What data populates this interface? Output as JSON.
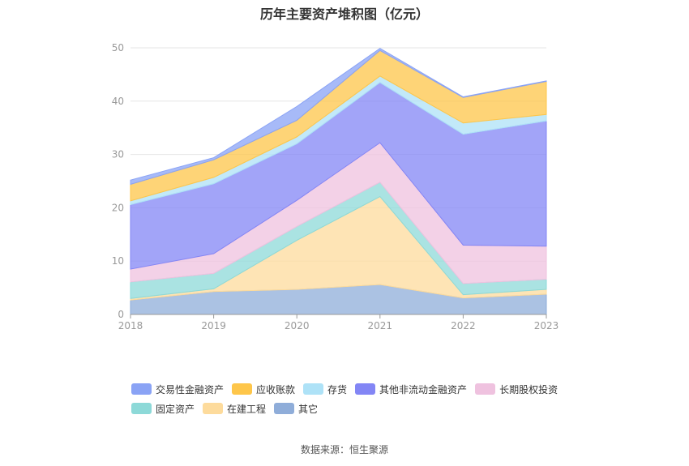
{
  "title": "历年主要资产堆积图（亿元）",
  "source": "数据来源：恒生聚源",
  "chart_data": {
    "type": "area",
    "stacked": true,
    "x": [
      "2018",
      "2019",
      "2020",
      "2021",
      "2022",
      "2023"
    ],
    "ylim": [
      0,
      50
    ],
    "yticks": [
      0,
      10,
      20,
      30,
      40,
      50
    ],
    "grid": true,
    "legend_position": "bottom",
    "series": [
      {
        "name": "其它",
        "color": "#8fadd9",
        "values": [
          2.7,
          4.3,
          4.7,
          5.6,
          3.1,
          3.8
        ]
      },
      {
        "name": "在建工程",
        "color": "#fddb9c",
        "values": [
          0.3,
          0.5,
          9.2,
          16.5,
          0.6,
          0.9
        ]
      },
      {
        "name": "固定资产",
        "color": "#8dd9d8",
        "values": [
          3.1,
          2.9,
          2.6,
          2.7,
          2.1,
          1.9
        ]
      },
      {
        "name": "长期股权投资",
        "color": "#efc2df",
        "values": [
          2.4,
          3.7,
          4.9,
          7.4,
          7.2,
          6.2
        ]
      },
      {
        "name": "其他非流动金融资产",
        "color": "#8386f5",
        "values": [
          12.1,
          13.1,
          10.6,
          11.3,
          20.8,
          23.5
        ]
      },
      {
        "name": "存货",
        "color": "#aee2f7",
        "values": [
          0.7,
          1.2,
          1.3,
          1.2,
          2.1,
          1.2
        ]
      },
      {
        "name": "应收账款",
        "color": "#fec64a",
        "values": [
          3.1,
          3.3,
          3.1,
          4.8,
          4.8,
          6.2
        ]
      },
      {
        "name": "交易性金融资产",
        "color": "#8aa3f5",
        "values": [
          0.8,
          0.4,
          2.6,
          0.4,
          0.1,
          0.1
        ]
      }
    ],
    "legend_order": [
      "交易性金融资产",
      "应收账款",
      "存货",
      "其他非流动金融资产",
      "长期股权投资",
      "固定资产",
      "在建工程",
      "其它"
    ]
  }
}
